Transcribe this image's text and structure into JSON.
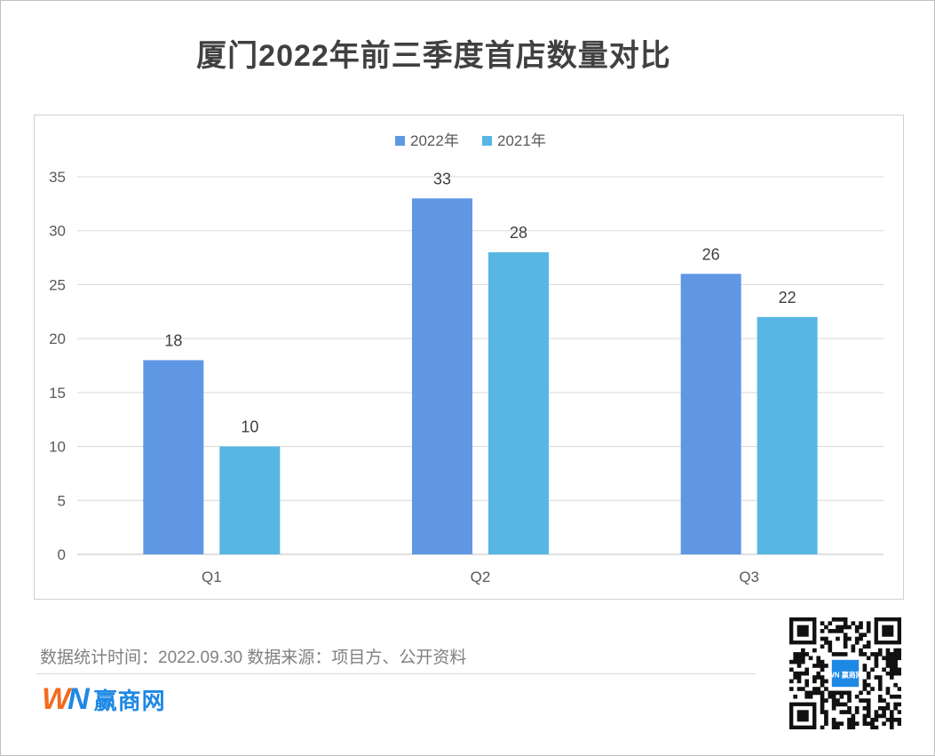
{
  "title": "厦门2022年前三季度首店数量对比",
  "chart_data": {
    "type": "bar",
    "categories": [
      "Q1",
      "Q2",
      "Q3"
    ],
    "series": [
      {
        "name": "2022年",
        "values": [
          18,
          33,
          26
        ],
        "color": "#5f97e5"
      },
      {
        "name": "2021年",
        "values": [
          10,
          28,
          22
        ],
        "color": "#57b6e3"
      }
    ],
    "ylim": [
      0,
      35
    ],
    "yticks": [
      0,
      5,
      10,
      15,
      20,
      25,
      30,
      35
    ],
    "grid": true,
    "legend_position": "top-center",
    "data_labels": true
  },
  "footer": {
    "note": "数据统计时间：2022.09.30  数据来源：项目方、公开资料"
  },
  "logo": {
    "mark_w": "W",
    "mark_n": "N",
    "text": "赢商网",
    "qr_center": "WN 赢商网"
  }
}
